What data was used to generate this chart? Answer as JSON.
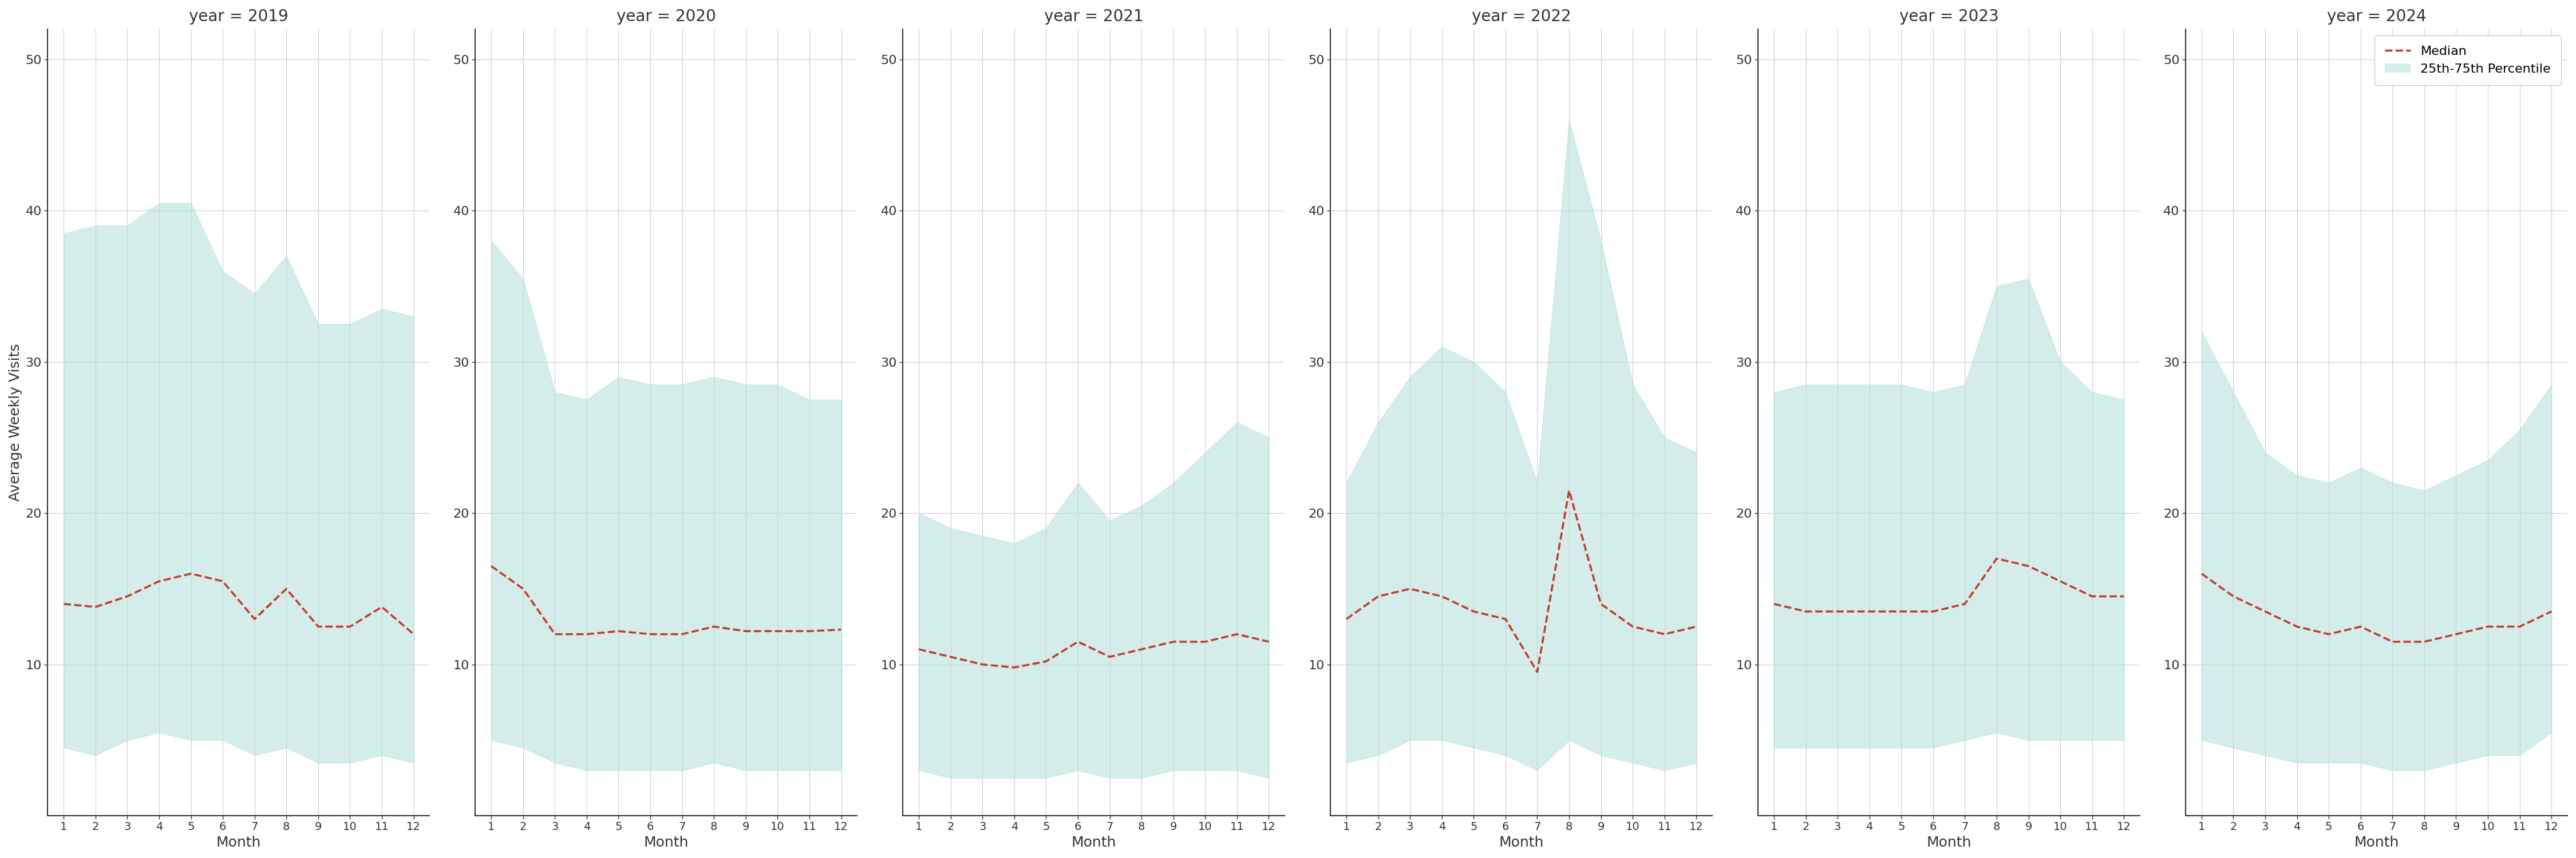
{
  "years": [
    2019,
    2020,
    2021,
    2022,
    2023,
    2024
  ],
  "months": [
    1,
    2,
    3,
    4,
    5,
    6,
    7,
    8,
    9,
    10,
    11,
    12
  ],
  "median": {
    "2019": [
      14.0,
      13.8,
      14.5,
      15.5,
      16.0,
      15.5,
      13.0,
      15.0,
      12.5,
      12.5,
      13.8,
      12.0
    ],
    "2020": [
      16.5,
      15.0,
      12.0,
      12.0,
      12.2,
      12.0,
      12.0,
      12.5,
      12.2,
      12.2,
      12.2,
      12.3
    ],
    "2021": [
      11.0,
      10.5,
      10.0,
      9.8,
      10.2,
      11.5,
      10.5,
      11.0,
      11.5,
      11.5,
      12.0,
      11.5
    ],
    "2022": [
      13.0,
      14.5,
      15.0,
      14.5,
      13.5,
      13.0,
      9.5,
      21.5,
      14.0,
      12.5,
      12.0,
      12.5
    ],
    "2023": [
      14.0,
      13.5,
      13.5,
      13.5,
      13.5,
      13.5,
      14.0,
      17.0,
      16.5,
      15.5,
      14.5,
      14.5
    ],
    "2024": [
      16.0,
      14.5,
      13.5,
      12.5,
      12.0,
      12.5,
      11.5,
      11.5,
      12.0,
      12.5,
      12.5,
      13.5
    ]
  },
  "p25": {
    "2019": [
      4.5,
      4.0,
      5.0,
      5.5,
      5.0,
      5.0,
      4.0,
      4.5,
      3.5,
      3.5,
      4.0,
      3.5
    ],
    "2020": [
      5.0,
      4.5,
      3.5,
      3.0,
      3.0,
      3.0,
      3.0,
      3.5,
      3.0,
      3.0,
      3.0,
      3.0
    ],
    "2021": [
      3.0,
      2.5,
      2.5,
      2.5,
      2.5,
      3.0,
      2.5,
      2.5,
      3.0,
      3.0,
      3.0,
      2.5
    ],
    "2022": [
      3.5,
      4.0,
      5.0,
      5.0,
      4.5,
      4.0,
      3.0,
      5.0,
      4.0,
      3.5,
      3.0,
      3.5
    ],
    "2023": [
      4.5,
      4.5,
      4.5,
      4.5,
      4.5,
      4.5,
      5.0,
      5.5,
      5.0,
      5.0,
      5.0,
      5.0
    ],
    "2024": [
      5.0,
      4.5,
      4.0,
      3.5,
      3.5,
      3.5,
      3.0,
      3.0,
      3.5,
      4.0,
      4.0,
      5.5
    ]
  },
  "p75": {
    "2019": [
      38.5,
      39.0,
      39.0,
      40.5,
      40.5,
      36.0,
      34.5,
      37.0,
      32.5,
      32.5,
      33.5,
      33.0
    ],
    "2020": [
      38.0,
      35.5,
      28.0,
      27.5,
      29.0,
      28.5,
      28.5,
      29.0,
      28.5,
      28.5,
      27.5,
      27.5
    ],
    "2021": [
      20.0,
      19.0,
      18.5,
      18.0,
      19.0,
      22.0,
      19.5,
      20.5,
      22.0,
      24.0,
      26.0,
      25.0
    ],
    "2022": [
      22.0,
      26.0,
      29.0,
      31.0,
      30.0,
      28.0,
      22.0,
      46.0,
      38.0,
      28.5,
      25.0,
      24.0
    ],
    "2023": [
      28.0,
      28.5,
      28.5,
      28.5,
      28.5,
      28.0,
      28.5,
      35.0,
      35.5,
      30.0,
      28.0,
      27.5
    ],
    "2024": [
      32.0,
      28.0,
      24.0,
      22.5,
      22.0,
      23.0,
      22.0,
      21.5,
      22.5,
      23.5,
      25.5,
      28.5
    ]
  },
  "fill_color": "#b2dfdb",
  "fill_alpha": 0.55,
  "line_color": "#c0392b",
  "line_style": "--",
  "line_width": 2.5,
  "ylabel": "Average Weekly Visits",
  "xlabel": "Month",
  "ylim": [
    0,
    52
  ],
  "yticks": [
    10,
    20,
    30,
    40,
    50
  ],
  "xticks": [
    1,
    2,
    3,
    4,
    5,
    6,
    7,
    8,
    9,
    10,
    11,
    12
  ],
  "legend_median_label": "Median",
  "legend_fill_label": "25th-75th Percentile",
  "bg_color": "#ffffff",
  "grid_color": "#cccccc",
  "spine_color": "#333333"
}
